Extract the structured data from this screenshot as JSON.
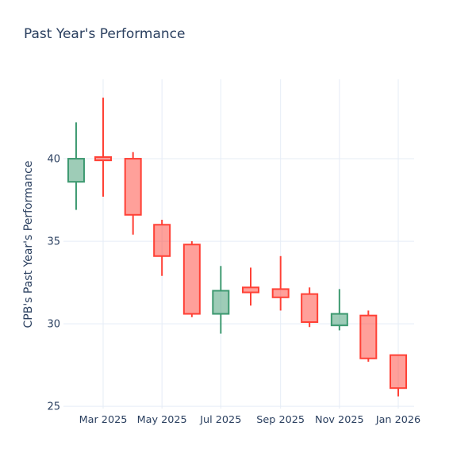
{
  "chart_data": {
    "type": "candlestick",
    "title": "Past Year's Performance",
    "xlabel": "",
    "ylabel": "CPB's Past Year's Performance",
    "categories": [
      "Feb 2025",
      "Mar 2025",
      "Apr 2025",
      "May 2025",
      "Jun 2025",
      "Jul 2025",
      "Aug 2025",
      "Sep 2025",
      "Oct 2025",
      "Nov 2025",
      "Dec 2025",
      "Jan 2026"
    ],
    "dates": [
      "2025-02-01",
      "2025-03-01",
      "2025-04-01",
      "2025-05-01",
      "2025-06-01",
      "2025-07-01",
      "2025-08-01",
      "2025-09-01",
      "2025-10-01",
      "2025-11-01",
      "2025-12-01",
      "2026-01-01"
    ],
    "series": {
      "open": [
        38.6,
        40.1,
        40.0,
        36.0,
        34.8,
        30.6,
        32.2,
        32.1,
        31.8,
        29.9,
        30.5,
        28.1
      ],
      "high": [
        42.2,
        43.7,
        40.4,
        36.3,
        35.0,
        33.5,
        33.4,
        34.1,
        32.2,
        32.1,
        30.8,
        28.1
      ],
      "low": [
        36.9,
        37.7,
        35.4,
        32.9,
        30.4,
        29.4,
        31.1,
        30.8,
        29.8,
        29.6,
        27.7,
        25.6
      ],
      "close": [
        40.0,
        39.9,
        36.6,
        34.1,
        30.6,
        32.0,
        31.9,
        31.6,
        30.1,
        30.6,
        27.9,
        26.1
      ]
    },
    "yticks": [
      25,
      30,
      35,
      40
    ],
    "xticks": [
      {
        "date": "2025-03-01",
        "label": "Mar 2025"
      },
      {
        "date": "2025-05-01",
        "label": "May 2025"
      },
      {
        "date": "2025-07-01",
        "label": "Jul 2025"
      },
      {
        "date": "2025-09-01",
        "label": "Sep 2025"
      },
      {
        "date": "2025-11-01",
        "label": "Nov 2025"
      },
      {
        "date": "2026-01-01",
        "label": "Jan 2026"
      }
    ],
    "ylim": [
      24.86,
      44.81
    ],
    "grid": true,
    "legend": "none",
    "colors": {
      "increasing": "#3D9970",
      "decreasing": "#FF4136",
      "text": "#2a3f5f",
      "grid": "#E5ECF6",
      "background": "#FFFFFF"
    }
  }
}
